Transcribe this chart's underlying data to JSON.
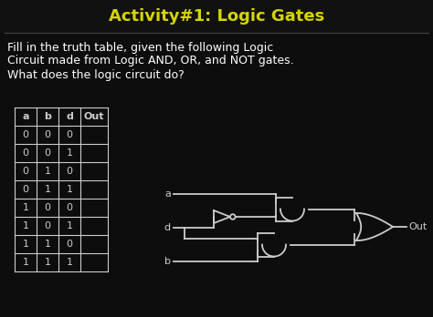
{
  "title": "Activity#1: Logic Gates",
  "title_color": "#d4d400",
  "bg_color": "#0d0d0d",
  "text_color": "#ffffff",
  "line1": "Fill in the truth table, given the following Logic",
  "line2": "Circuit made from Logic AND, OR, and NOT gates.",
  "line3": "What does the logic circuit do?",
  "table_headers": [
    "a",
    "b",
    "d",
    "Out"
  ],
  "table_rows": [
    [
      "0",
      "0",
      "0",
      ""
    ],
    [
      "0",
      "0",
      "1",
      ""
    ],
    [
      "0",
      "1",
      "0",
      ""
    ],
    [
      "0",
      "1",
      "1",
      ""
    ],
    [
      "1",
      "0",
      "0",
      ""
    ],
    [
      "1",
      "0",
      "1",
      ""
    ],
    [
      "1",
      "1",
      "0",
      ""
    ],
    [
      "1",
      "1",
      "1",
      ""
    ]
  ],
  "wire_color": "#cccccc",
  "gate_color": "#cccccc",
  "figsize": [
    4.74,
    3.48
  ],
  "dpi": 100
}
